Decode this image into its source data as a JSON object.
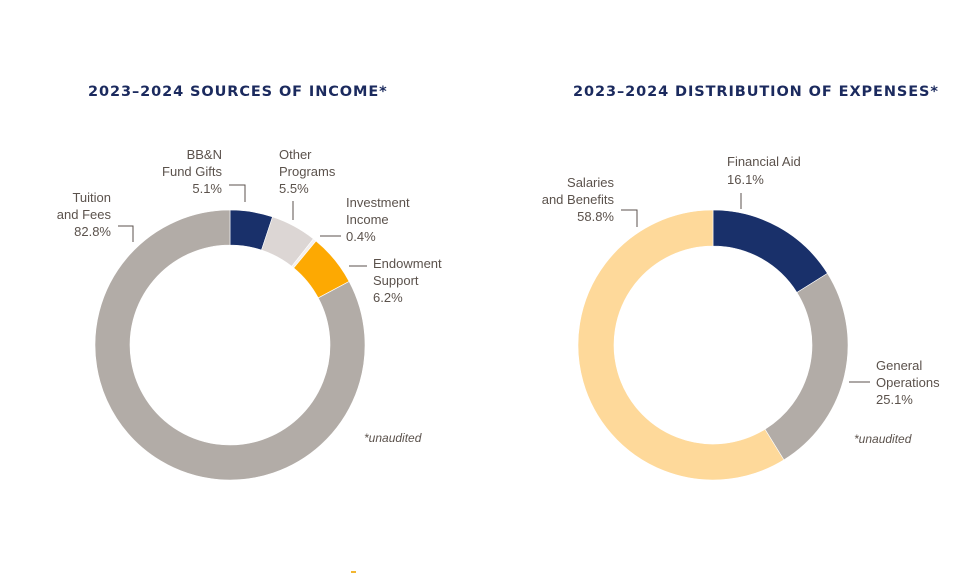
{
  "chart_data": [
    {
      "type": "pie",
      "variant": "donut",
      "title": "2023–2024 SOURCES OF INCOME*",
      "note": "*unaudited",
      "slices": [
        {
          "label_lines": [
            "BB&N",
            "Fund Gifts"
          ],
          "label": "BB&N Fund Gifts",
          "value": 5.1,
          "value_label": "5.1%",
          "color": "#19306a"
        },
        {
          "label_lines": [
            "Other",
            "Programs"
          ],
          "label": "Other Programs",
          "value": 5.5,
          "value_label": "5.5%",
          "color": "#dcd6d4"
        },
        {
          "label_lines": [
            "Investment",
            "Income"
          ],
          "label": "Investment Income",
          "value": 0.4,
          "value_label": "0.4%",
          "color": "#f3efee"
        },
        {
          "label_lines": [
            "Endowment",
            "Support"
          ],
          "label": "Endowment Support",
          "value": 6.2,
          "value_label": "6.2%",
          "color": "#fda902"
        },
        {
          "label_lines": [
            "Tuition",
            "and Fees"
          ],
          "label": "Tuition and Fees",
          "value": 82.8,
          "value_label": "82.8%",
          "color": "#b2aca7"
        }
      ]
    },
    {
      "type": "pie",
      "variant": "donut",
      "title": "2023–2024 DISTRIBUTION OF EXPENSES*",
      "note": "*unaudited",
      "slices": [
        {
          "label_lines": [
            "Financial Aid"
          ],
          "label": "Financial Aid",
          "value": 16.1,
          "value_label": "16.1%",
          "color": "#19306a"
        },
        {
          "label_lines": [
            "General",
            "Operations"
          ],
          "label": "General Operations",
          "value": 25.1,
          "value_label": "25.1%",
          "color": "#b2aca7"
        },
        {
          "label_lines": [
            "Salaries",
            "and Benefits"
          ],
          "label": "Salaries and Benefits",
          "value": 58.8,
          "value_label": "58.8%",
          "color": "#fed99a"
        }
      ]
    }
  ],
  "colors": {
    "title": "#1b2a5e",
    "text": "#5b524c",
    "accent_mark": "#f2b632"
  }
}
